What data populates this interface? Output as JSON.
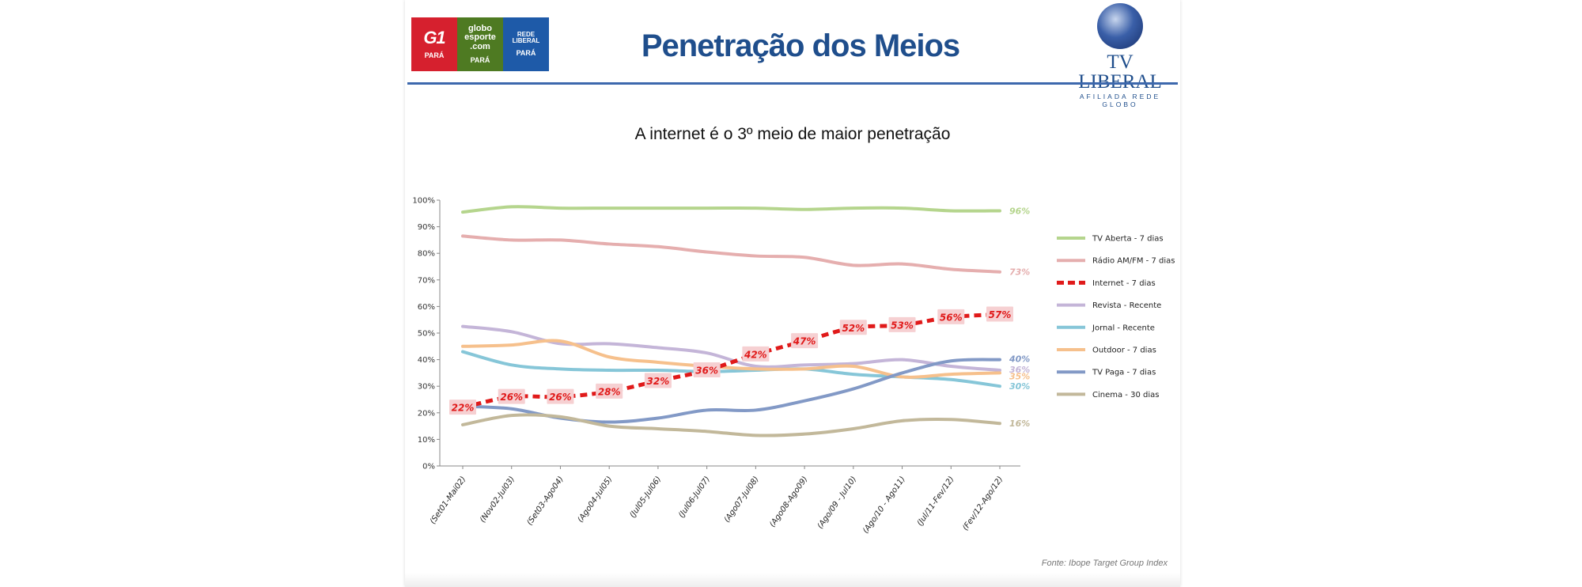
{
  "header": {
    "title": "Penetração dos Meios",
    "logos": [
      {
        "name": "g1-logo",
        "top": "G1",
        "bottom": "PARÁ",
        "color": "#d6202e"
      },
      {
        "name": "globoesporte-logo",
        "top": "globo esporte .com",
        "bottom": "PARÁ",
        "color": "#4e7a22"
      },
      {
        "name": "rede-liberal-logo",
        "top": "REDE LIBERAL",
        "bottom": "PARÁ",
        "color": "#1e5aa8"
      }
    ],
    "brand_name": "TV LIBERAL",
    "brand_sub": "AFILIADA REDE GLOBO"
  },
  "source": "Fonte: Ibope Target Group Index",
  "chart_data": {
    "type": "line",
    "title": "A internet é o 3º meio de maior penetração",
    "categories": [
      "(Set01-Mai02)",
      "(Nov02-Jul03)",
      "(Set03-Ago04)",
      "(Ago04-Jul05)",
      "(Jul05-Jul06)",
      "(Jul06-Jul07)",
      "(Ago07-Jul08)",
      "(Ago08-Ago09)",
      "(Ago/09 - Jul10)",
      "(Ago/10 - Ago11)",
      "(Jul/11-Fev/12)",
      "(Fev/12-Ago/12)"
    ],
    "ylim": [
      0,
      100
    ],
    "yticks": [
      "0%",
      "10%",
      "20%",
      "30%",
      "40%",
      "50%",
      "60%",
      "70%",
      "80%",
      "90%",
      "100%"
    ],
    "legend_position": "right",
    "series": [
      {
        "name": "TV Aberta - 7 dias",
        "color": "#b5d58d",
        "values": [
          95.5,
          97.5,
          97,
          97,
          97,
          97,
          97,
          96.5,
          97,
          97,
          96,
          96
        ],
        "end_label": "96%"
      },
      {
        "name": "Rádio AM/FM - 7 dias",
        "color": "#e5aeae",
        "values": [
          86.5,
          85,
          85,
          83.5,
          82.5,
          80.5,
          79,
          78.5,
          75.5,
          76,
          74,
          73
        ],
        "end_label": "73%"
      },
      {
        "name": "Internet - 7 dias",
        "color": "#e01a1a",
        "dashed": true,
        "values": [
          22,
          26,
          26,
          28,
          32,
          36,
          42,
          47,
          52,
          53,
          56,
          57
        ],
        "labels": [
          "22%",
          "26%",
          "26%",
          "28%",
          "32%",
          "36%",
          "42%",
          "47%",
          "52%",
          "53%",
          "56%",
          "57%"
        ]
      },
      {
        "name": "Revista - Recente",
        "color": "#c4b5d8",
        "values": [
          52.5,
          50.5,
          46,
          46,
          44.5,
          42.5,
          37.5,
          38,
          38.5,
          40,
          37.5,
          36
        ],
        "end_label": "36%"
      },
      {
        "name": "Jornal - Recente",
        "color": "#86c6d8",
        "values": [
          43,
          38,
          36.5,
          36,
          36,
          35.5,
          36,
          36.5,
          34.5,
          33.5,
          32.5,
          30
        ],
        "end_label": "30%"
      },
      {
        "name": "Outdoor - 7 dias",
        "color": "#f6c08c",
        "values": [
          45,
          45.5,
          47,
          41,
          39,
          37.5,
          36.5,
          36.5,
          37.5,
          33.5,
          34.5,
          35
        ],
        "end_label": "35%"
      },
      {
        "name": "TV Paga - 7 dias",
        "color": "#8299c6",
        "values": [
          22.5,
          21.5,
          18,
          16.5,
          18,
          21,
          21,
          24.5,
          29,
          35,
          39.5,
          40
        ],
        "end_label": "40%"
      },
      {
        "name": "Cinema - 30 dias",
        "color": "#c2b89a",
        "values": [
          15.5,
          19,
          18.5,
          15,
          14,
          13,
          11.5,
          12,
          14,
          17,
          17.5,
          16
        ],
        "end_label": "16%"
      }
    ]
  }
}
